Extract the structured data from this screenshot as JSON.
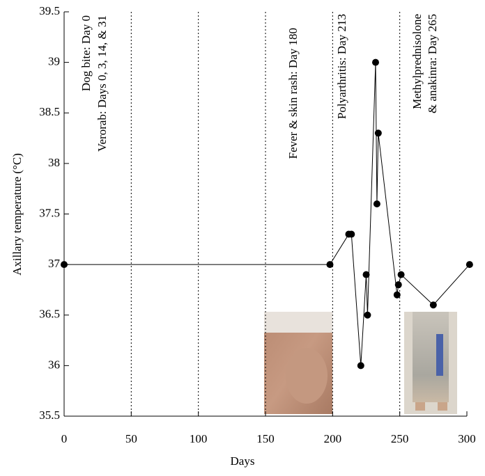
{
  "chart_data": {
    "type": "line",
    "x_label": "Days",
    "y_label": "Axillary temperature (°C)",
    "x": [
      0,
      198,
      212,
      214,
      221,
      225,
      226,
      232,
      233,
      234,
      248,
      249,
      251,
      275,
      302
    ],
    "values": [
      37,
      37,
      37.3,
      37.3,
      36,
      36.9,
      36.5,
      39,
      37.6,
      38.3,
      36.7,
      36.8,
      36.9,
      36.6,
      37
    ],
    "color": "#000000",
    "xlim": [
      0,
      300
    ],
    "xticks": [
      0,
      50,
      100,
      150,
      200,
      250,
      300
    ],
    "ylim": [
      35.5,
      39.5
    ],
    "yticks": [
      35.5,
      36,
      36.5,
      37,
      37.5,
      38,
      38.5,
      39,
      39.5
    ],
    "grid": true,
    "annotations": [
      "Dog bite: Day 0",
      "Verorab: Days 0, 3, 14, & 31",
      "Fever & skin rash: Day 180",
      "Polyarthritis: Day 213",
      "Methylprednisolone",
      "& anakinra: Day 265"
    ]
  }
}
